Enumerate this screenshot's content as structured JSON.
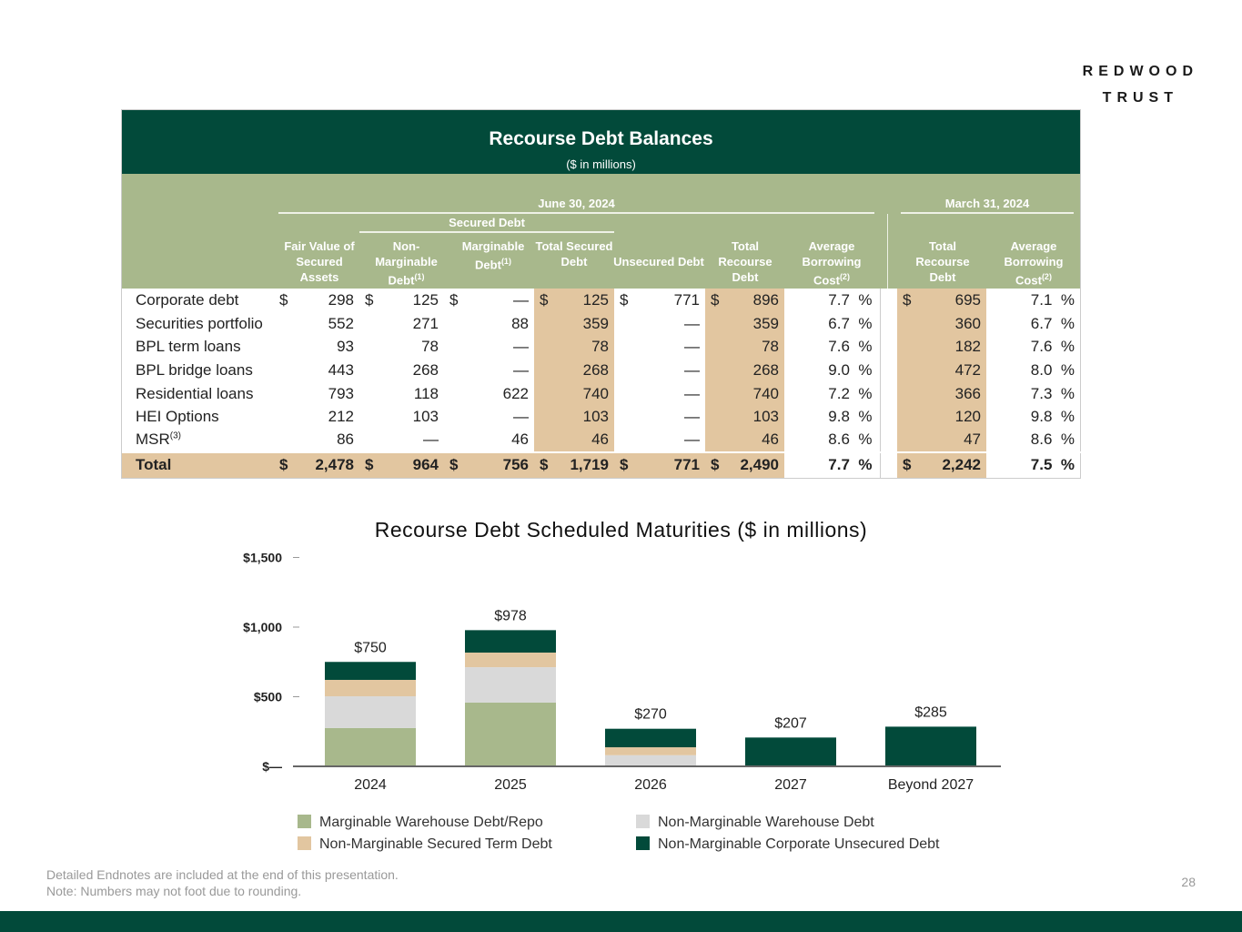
{
  "logo": {
    "line1": "REDWOOD",
    "line2": "TRUST"
  },
  "table": {
    "title": "Recourse Debt Balances",
    "subtitle": "($ in millions)",
    "group1": "June 30, 2024",
    "group2": "March 31, 2024",
    "subgroup": "Secured Debt",
    "headers": [
      "Fair Value of Secured Assets",
      "Non- Marginable Debt (1)",
      "Marginable Debt (1)",
      "Total Secured Debt",
      "Unsecured Debt",
      "Total Recourse Debt",
      "Average Borrowing Cost (2)",
      "Total Recourse Debt",
      "Average Borrowing Cost (2)"
    ],
    "rows": [
      {
        "label": "Corporate debt",
        "fv": "298",
        "nm": "125",
        "mg": "—",
        "ts": "125",
        "un": "771",
        "tr": "896",
        "cost": "7.7",
        "mtr": "695",
        "mcost": "7.1",
        "dollar": true
      },
      {
        "label": "Securities portfolio",
        "fv": "552",
        "nm": "271",
        "mg": "88",
        "ts": "359",
        "un": "—",
        "tr": "359",
        "cost": "6.7",
        "mtr": "360",
        "mcost": "6.7"
      },
      {
        "label": "BPL term loans",
        "fv": "93",
        "nm": "78",
        "mg": "—",
        "ts": "78",
        "un": "—",
        "tr": "78",
        "cost": "7.6",
        "mtr": "182",
        "mcost": "7.6"
      },
      {
        "label": "BPL bridge loans",
        "fv": "443",
        "nm": "268",
        "mg": "—",
        "ts": "268",
        "un": "—",
        "tr": "268",
        "cost": "9.0",
        "mtr": "472",
        "mcost": "8.0"
      },
      {
        "label": "Residential loans",
        "fv": "793",
        "nm": "118",
        "mg": "622",
        "ts": "740",
        "un": "—",
        "tr": "740",
        "cost": "7.2",
        "mtr": "366",
        "mcost": "7.3"
      },
      {
        "label": "HEI Options",
        "fv": "212",
        "nm": "103",
        "mg": "—",
        "ts": "103",
        "un": "—",
        "tr": "103",
        "cost": "9.8",
        "mtr": "120",
        "mcost": "9.8"
      },
      {
        "label": "MSR",
        "sup": "(3)",
        "fv": "86",
        "nm": "—",
        "mg": "46",
        "ts": "46",
        "un": "—",
        "tr": "46",
        "cost": "8.6",
        "mtr": "47",
        "mcost": "8.6"
      }
    ],
    "total": {
      "label": "Total",
      "fv": "2,478",
      "nm": "964",
      "mg": "756",
      "ts": "1,719",
      "un": "771",
      "tr": "2,490",
      "cost": "7.7",
      "mtr": "2,242",
      "mcost": "7.5"
    },
    "dollar": "$",
    "pct": "%"
  },
  "chart_data": {
    "type": "bar",
    "stacked": true,
    "title": "Recourse Debt Scheduled Maturities ($ in millions)",
    "categories": [
      "2024",
      "2025",
      "2026",
      "2027",
      "Beyond 2027"
    ],
    "yticks": [
      "$—",
      "$500",
      "$1,000",
      "$1,500"
    ],
    "ylim": [
      0,
      1500
    ],
    "totals_labels": [
      "$750",
      "$978",
      "$270",
      "$207",
      "$285"
    ],
    "series": [
      {
        "name": "Marginable Warehouse Debt/Repo",
        "color": "#a8b88c",
        "values": [
          275,
          458,
          0,
          0,
          0
        ]
      },
      {
        "name": "Non-Marginable Warehouse Debt",
        "color": "#d9d9d9",
        "values": [
          228,
          254,
          80,
          0,
          0
        ]
      },
      {
        "name": "Non-Marginable Secured Term Debt",
        "color": "#e2c6a0",
        "values": [
          118,
          105,
          57,
          0,
          0
        ]
      },
      {
        "name": "Non-Marginable Corporate Unsecured Debt",
        "color": "#024a3a",
        "values": [
          129,
          161,
          133,
          207,
          285
        ]
      }
    ],
    "legend": "bottom"
  },
  "footer": {
    "note1": "Detailed Endnotes are included at the end of this presentation.",
    "note2": "Note: Numbers may not foot due to rounding.",
    "page": "28"
  }
}
